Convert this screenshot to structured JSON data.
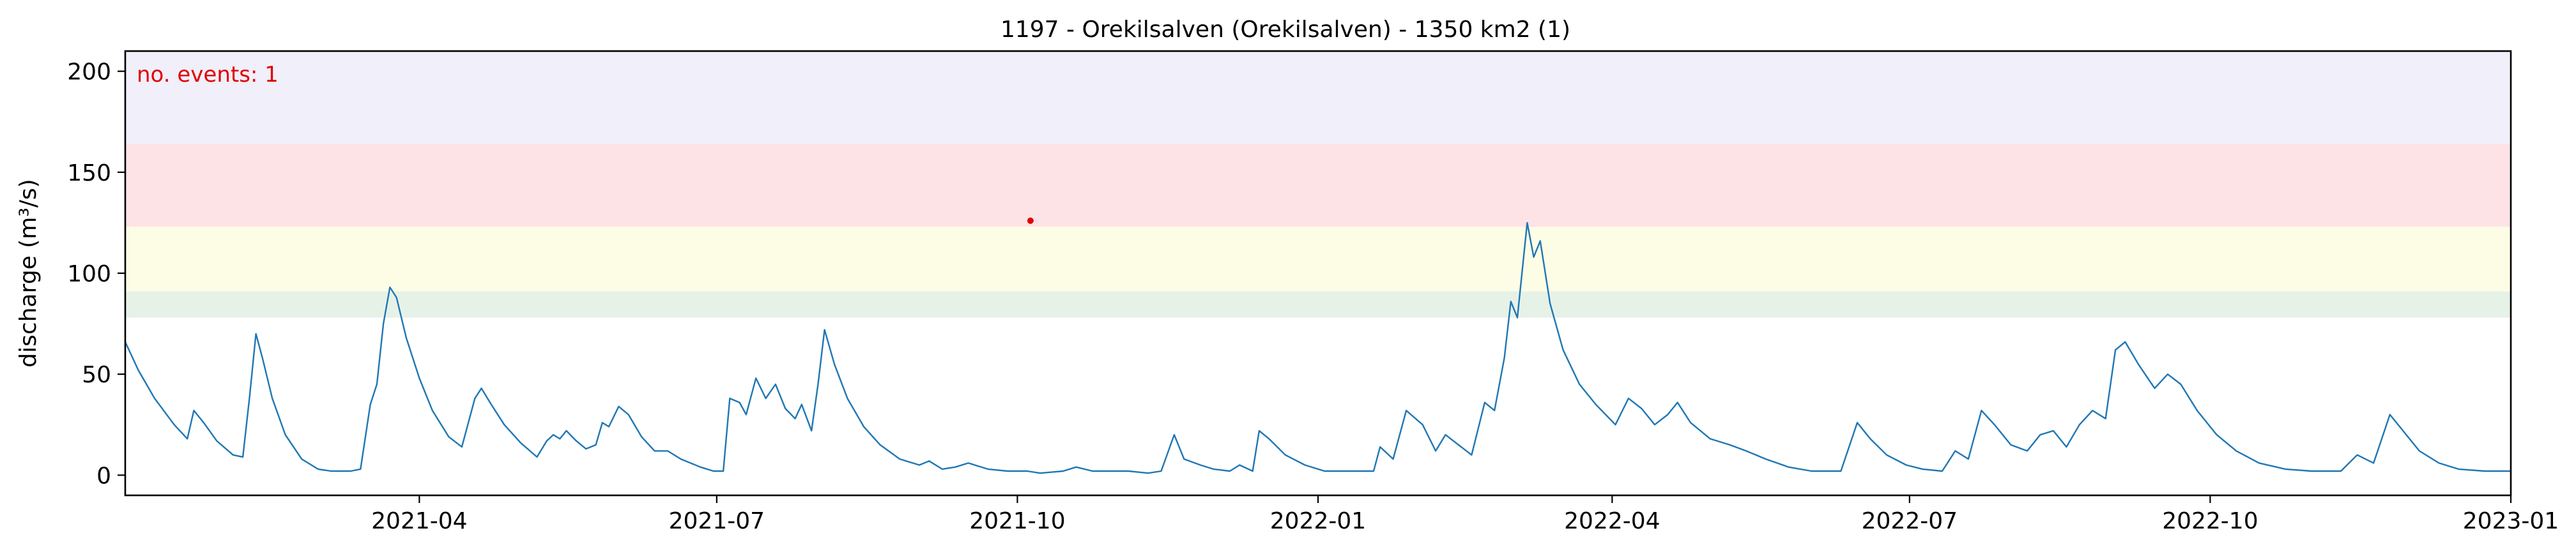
{
  "chart_data": {
    "type": "line",
    "title": "1197 - Orekilsalven (Orekilsalven) - 1350 km2 (1)",
    "xlabel": "",
    "ylabel": "discharge (m³/s)",
    "xlim": [
      "2021-01-01",
      "2023-01-01"
    ],
    "ylim": [
      -10,
      210
    ],
    "y_ticks": [
      0,
      50,
      100,
      150,
      200
    ],
    "x_ticks": [
      "2021-04",
      "2021-07",
      "2021-10",
      "2022-01",
      "2022-04",
      "2022-07",
      "2022-10",
      "2023-01"
    ],
    "grid": false,
    "annotation": {
      "text": "no. events: 1",
      "color": "#e00000"
    },
    "threshold_bands": [
      {
        "from": 78,
        "to": 91,
        "color": "#e6f2e8"
      },
      {
        "from": 91,
        "to": 123,
        "color": "#fdfde6"
      },
      {
        "from": 123,
        "to": 164,
        "color": "#fde3e6"
      },
      {
        "from": 164,
        "to": 210,
        "color": "#f1effa"
      }
    ],
    "series": [
      {
        "color": "#1f77b4",
        "points": [
          [
            "2021-01-01",
            66
          ],
          [
            "2021-01-05",
            52
          ],
          [
            "2021-01-10",
            38
          ],
          [
            "2021-01-16",
            25
          ],
          [
            "2021-01-20",
            18
          ],
          [
            "2021-01-22",
            32
          ],
          [
            "2021-01-25",
            26
          ],
          [
            "2021-01-29",
            17
          ],
          [
            "2021-02-03",
            10
          ],
          [
            "2021-02-06",
            9
          ],
          [
            "2021-02-08",
            38
          ],
          [
            "2021-02-10",
            70
          ],
          [
            "2021-02-12",
            58
          ],
          [
            "2021-02-15",
            38
          ],
          [
            "2021-02-19",
            20
          ],
          [
            "2021-02-24",
            8
          ],
          [
            "2021-03-01",
            3
          ],
          [
            "2021-03-05",
            2
          ],
          [
            "2021-03-11",
            2
          ],
          [
            "2021-03-14",
            3
          ],
          [
            "2021-03-17",
            35
          ],
          [
            "2021-03-19",
            45
          ],
          [
            "2021-03-21",
            75
          ],
          [
            "2021-03-23",
            93
          ],
          [
            "2021-03-25",
            88
          ],
          [
            "2021-03-28",
            68
          ],
          [
            "2021-04-01",
            48
          ],
          [
            "2021-04-05",
            32
          ],
          [
            "2021-04-10",
            19
          ],
          [
            "2021-04-14",
            14
          ],
          [
            "2021-04-18",
            38
          ],
          [
            "2021-04-20",
            43
          ],
          [
            "2021-04-23",
            35
          ],
          [
            "2021-04-27",
            25
          ],
          [
            "2021-05-02",
            16
          ],
          [
            "2021-05-07",
            9
          ],
          [
            "2021-05-10",
            17
          ],
          [
            "2021-05-12",
            20
          ],
          [
            "2021-05-14",
            18
          ],
          [
            "2021-05-16",
            22
          ],
          [
            "2021-05-19",
            17
          ],
          [
            "2021-05-22",
            13
          ],
          [
            "2021-05-25",
            15
          ],
          [
            "2021-05-27",
            26
          ],
          [
            "2021-05-29",
            24
          ],
          [
            "2021-06-01",
            34
          ],
          [
            "2021-06-04",
            30
          ],
          [
            "2021-06-08",
            19
          ],
          [
            "2021-06-12",
            12
          ],
          [
            "2021-06-16",
            12
          ],
          [
            "2021-06-20",
            8
          ],
          [
            "2021-06-26",
            4
          ],
          [
            "2021-06-30",
            2
          ],
          [
            "2021-07-03",
            2
          ],
          [
            "2021-07-05",
            38
          ],
          [
            "2021-07-08",
            36
          ],
          [
            "2021-07-10",
            30
          ],
          [
            "2021-07-13",
            48
          ],
          [
            "2021-07-16",
            38
          ],
          [
            "2021-07-19",
            45
          ],
          [
            "2021-07-22",
            33
          ],
          [
            "2021-07-25",
            28
          ],
          [
            "2021-07-27",
            35
          ],
          [
            "2021-07-30",
            22
          ],
          [
            "2021-08-01",
            45
          ],
          [
            "2021-08-03",
            72
          ],
          [
            "2021-08-06",
            55
          ],
          [
            "2021-08-10",
            38
          ],
          [
            "2021-08-15",
            24
          ],
          [
            "2021-08-20",
            15
          ],
          [
            "2021-08-26",
            8
          ],
          [
            "2021-09-01",
            5
          ],
          [
            "2021-09-04",
            7
          ],
          [
            "2021-09-08",
            3
          ],
          [
            "2021-09-12",
            4
          ],
          [
            "2021-09-16",
            6
          ],
          [
            "2021-09-22",
            3
          ],
          [
            "2021-09-28",
            2
          ],
          [
            "2021-10-04",
            2
          ],
          [
            "2021-10-08",
            1
          ],
          [
            "2021-10-15",
            2
          ],
          [
            "2021-10-19",
            4
          ],
          [
            "2021-10-24",
            2
          ],
          [
            "2021-10-30",
            2
          ],
          [
            "2021-11-04",
            2
          ],
          [
            "2021-11-10",
            1
          ],
          [
            "2021-11-14",
            2
          ],
          [
            "2021-11-18",
            20
          ],
          [
            "2021-11-21",
            8
          ],
          [
            "2021-11-26",
            5
          ],
          [
            "2021-11-30",
            3
          ],
          [
            "2021-12-05",
            2
          ],
          [
            "2021-12-08",
            5
          ],
          [
            "2021-12-12",
            2
          ],
          [
            "2021-12-14",
            22
          ],
          [
            "2021-12-17",
            18
          ],
          [
            "2021-12-22",
            10
          ],
          [
            "2021-12-28",
            5
          ],
          [
            "2022-01-03",
            2
          ],
          [
            "2022-01-10",
            2
          ],
          [
            "2022-01-18",
            2
          ],
          [
            "2022-01-20",
            14
          ],
          [
            "2022-01-24",
            8
          ],
          [
            "2022-01-28",
            32
          ],
          [
            "2022-02-02",
            25
          ],
          [
            "2022-02-06",
            12
          ],
          [
            "2022-02-09",
            20
          ],
          [
            "2022-02-13",
            15
          ],
          [
            "2022-02-17",
            10
          ],
          [
            "2022-02-21",
            36
          ],
          [
            "2022-02-24",
            32
          ],
          [
            "2022-02-27",
            58
          ],
          [
            "2022-03-01",
            86
          ],
          [
            "2022-03-03",
            78
          ],
          [
            "2022-03-06",
            125
          ],
          [
            "2022-03-08",
            108
          ],
          [
            "2022-03-10",
            116
          ],
          [
            "2022-03-13",
            85
          ],
          [
            "2022-03-17",
            62
          ],
          [
            "2022-03-22",
            45
          ],
          [
            "2022-03-27",
            35
          ],
          [
            "2022-04-02",
            25
          ],
          [
            "2022-04-06",
            38
          ],
          [
            "2022-04-10",
            33
          ],
          [
            "2022-04-14",
            25
          ],
          [
            "2022-04-18",
            30
          ],
          [
            "2022-04-21",
            36
          ],
          [
            "2022-04-25",
            26
          ],
          [
            "2022-05-01",
            18
          ],
          [
            "2022-05-07",
            15
          ],
          [
            "2022-05-12",
            12
          ],
          [
            "2022-05-18",
            8
          ],
          [
            "2022-05-25",
            4
          ],
          [
            "2022-06-01",
            2
          ],
          [
            "2022-06-10",
            2
          ],
          [
            "2022-06-15",
            26
          ],
          [
            "2022-06-19",
            18
          ],
          [
            "2022-06-24",
            10
          ],
          [
            "2022-06-30",
            5
          ],
          [
            "2022-07-05",
            3
          ],
          [
            "2022-07-11",
            2
          ],
          [
            "2022-07-15",
            12
          ],
          [
            "2022-07-19",
            8
          ],
          [
            "2022-07-23",
            32
          ],
          [
            "2022-07-27",
            25
          ],
          [
            "2022-08-01",
            15
          ],
          [
            "2022-08-06",
            12
          ],
          [
            "2022-08-10",
            20
          ],
          [
            "2022-08-14",
            22
          ],
          [
            "2022-08-18",
            14
          ],
          [
            "2022-08-22",
            25
          ],
          [
            "2022-08-26",
            32
          ],
          [
            "2022-08-30",
            28
          ],
          [
            "2022-09-02",
            62
          ],
          [
            "2022-09-05",
            66
          ],
          [
            "2022-09-09",
            55
          ],
          [
            "2022-09-14",
            43
          ],
          [
            "2022-09-18",
            50
          ],
          [
            "2022-09-22",
            45
          ],
          [
            "2022-09-27",
            32
          ],
          [
            "2022-10-03",
            20
          ],
          [
            "2022-10-09",
            12
          ],
          [
            "2022-10-16",
            6
          ],
          [
            "2022-10-24",
            3
          ],
          [
            "2022-11-01",
            2
          ],
          [
            "2022-11-10",
            2
          ],
          [
            "2022-11-15",
            10
          ],
          [
            "2022-11-20",
            6
          ],
          [
            "2022-11-25",
            30
          ],
          [
            "2022-11-29",
            22
          ],
          [
            "2022-12-04",
            12
          ],
          [
            "2022-12-10",
            6
          ],
          [
            "2022-12-16",
            3
          ],
          [
            "2022-12-24",
            2
          ],
          [
            "2023-01-01",
            2
          ]
        ]
      }
    ],
    "events": [
      {
        "x": "2021-10-05",
        "y": 126,
        "color": "#e00000"
      }
    ]
  }
}
